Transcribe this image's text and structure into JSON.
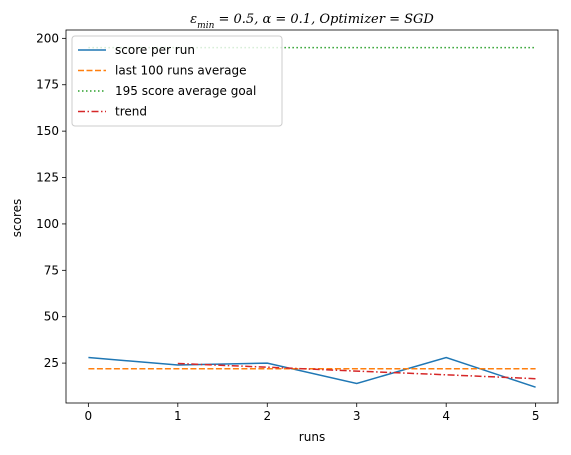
{
  "chart_data": {
    "type": "line",
    "title": "ε_min = 0.5, α = 0.1, Optimizer = SGD",
    "title_parts": {
      "eps": "ε",
      "eps_sub": "min",
      "rest": " = 0.5, α = 0.1, Optimizer = SGD"
    },
    "xlabel": "runs",
    "ylabel": "scores",
    "xlim": [
      -0.25,
      5.25
    ],
    "ylim": [
      3.5,
      204.5
    ],
    "xticks": [
      0,
      1,
      2,
      3,
      4,
      5
    ],
    "yticks": [
      25,
      50,
      75,
      100,
      125,
      150,
      175,
      200
    ],
    "grid": false,
    "legend_position": "upper-left",
    "series": [
      {
        "name": "score per run",
        "color": "#1f77b4",
        "dash": "solid",
        "x": [
          0,
          1,
          2,
          3,
          4,
          5
        ],
        "y": [
          28,
          24,
          25,
          14,
          28,
          12
        ]
      },
      {
        "name": "last 100 runs average",
        "color": "#ff7f0e",
        "dash": "dashed",
        "x": [
          0,
          5
        ],
        "y": [
          22,
          22
        ]
      },
      {
        "name": "195 score average goal",
        "color": "#2ca02c",
        "dash": "dotted",
        "x": [
          0,
          5
        ],
        "y": [
          195,
          195
        ]
      },
      {
        "name": "trend",
        "color": "#d62728",
        "dash": "dashdot",
        "x": [
          1,
          2,
          3,
          4,
          5
        ],
        "y": [
          24.8,
          22.8,
          20.7,
          18.7,
          16.6
        ]
      }
    ]
  }
}
